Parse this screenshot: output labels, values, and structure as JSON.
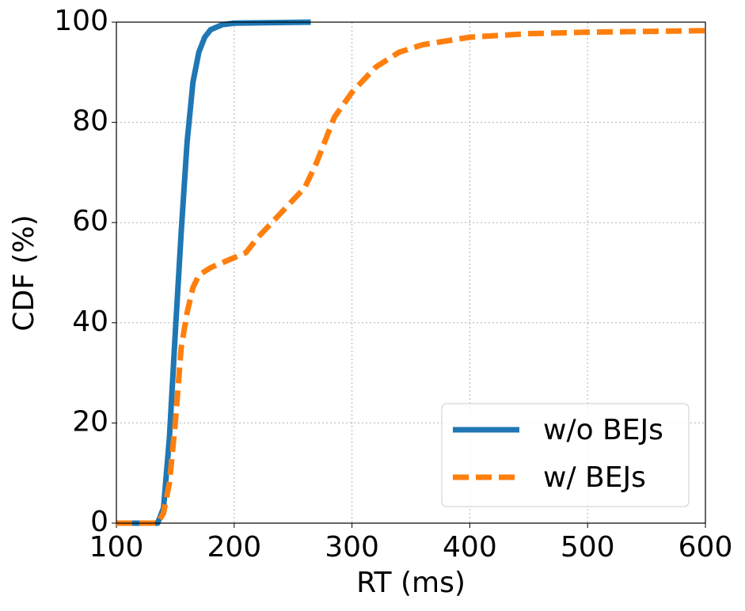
{
  "chart_data": {
    "type": "line",
    "x_label": "RT (ms)",
    "y_label": "CDF (%)",
    "xlim": [
      100,
      600
    ],
    "ylim": [
      0,
      100
    ],
    "xticks": [
      100,
      200,
      300,
      400,
      500,
      600
    ],
    "yticks": [
      0,
      20,
      40,
      60,
      80,
      100
    ],
    "grid": true,
    "legend": "lower right",
    "series": [
      {
        "name": "w/o BEJs",
        "color": "#1f77b4",
        "dashed": false,
        "x": [
          100,
          135,
          140,
          145,
          150,
          155,
          160,
          165,
          170,
          175,
          180,
          190,
          200,
          265
        ],
        "values": [
          0,
          0,
          3,
          17,
          38,
          58,
          76,
          88,
          94,
          97,
          98.5,
          99.5,
          99.8,
          100
        ]
      },
      {
        "name": "w/ BEJs",
        "color": "#ff7f0e",
        "dashed": true,
        "x": [
          100,
          135,
          140,
          145,
          150,
          155,
          160,
          165,
          170,
          180,
          200,
          210,
          220,
          240,
          260,
          270,
          285,
          300,
          320,
          340,
          360,
          400,
          450,
          500,
          600
        ],
        "values": [
          0,
          0,
          2,
          8,
          20,
          35,
          42,
          47,
          49.5,
          51,
          53,
          54,
          57,
          62,
          67,
          72,
          81,
          86,
          91,
          94,
          95.5,
          97,
          97.7,
          98,
          98.3
        ]
      }
    ]
  }
}
